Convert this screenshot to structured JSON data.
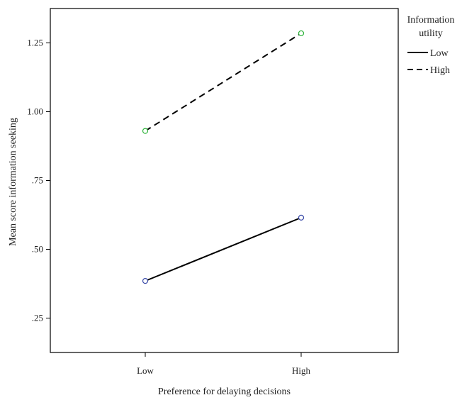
{
  "chart_data": {
    "type": "line",
    "xlabel": "Preference for delaying decisions",
    "ylabel": "Mean score information seeking",
    "categories": [
      "Low",
      "High"
    ],
    "ylim": [
      0.125,
      1.375
    ],
    "yticks": [
      0.25,
      0.5,
      0.75,
      1.0,
      1.25
    ],
    "ytick_labels": [
      ".25",
      ".50",
      ".75",
      "1.00",
      "1.25"
    ],
    "legend": {
      "title_lines": [
        "Information",
        "utility"
      ],
      "placement": "right"
    },
    "series": [
      {
        "name": "Low",
        "values": [
          0.385,
          0.615
        ],
        "line_style": "solid",
        "marker_color": "#3a4aa8"
      },
      {
        "name": "High",
        "values": [
          0.93,
          1.285
        ],
        "line_style": "dashed",
        "marker_color": "#2db33a"
      }
    ],
    "grid": false
  }
}
